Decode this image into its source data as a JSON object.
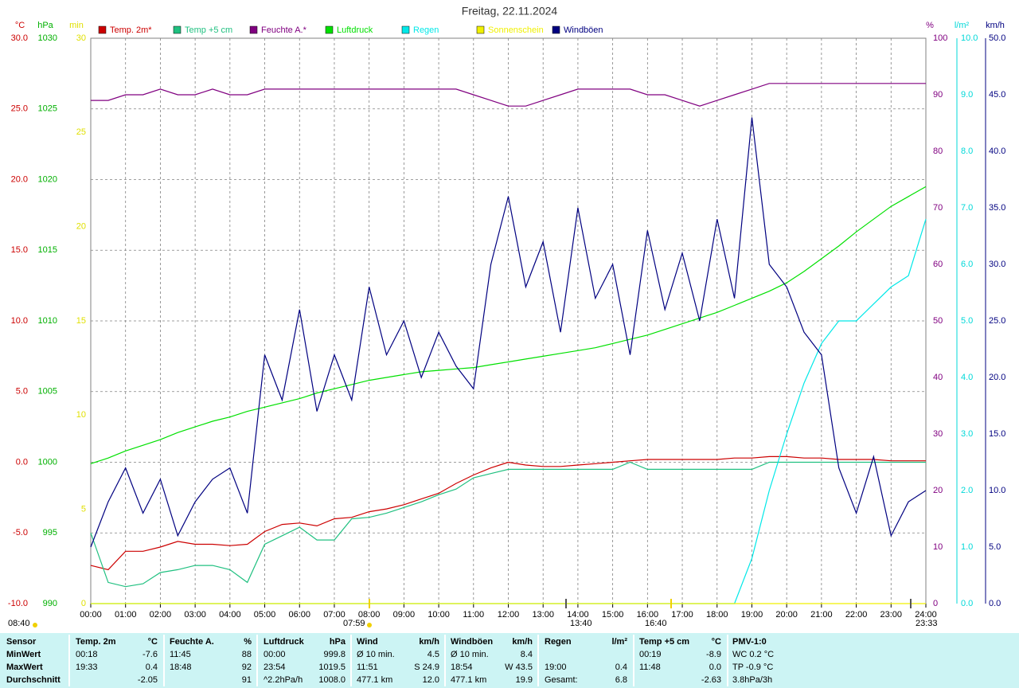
{
  "chart_data": {
    "type": "line",
    "title": "Freitag, 22.11.2024",
    "grid": true,
    "x": [
      0,
      0.5,
      1,
      1.5,
      2,
      2.5,
      3,
      3.5,
      4,
      4.5,
      5,
      5.5,
      6,
      6.5,
      7,
      7.5,
      8,
      8.5,
      9,
      9.5,
      10,
      10.5,
      11,
      11.5,
      12,
      12.5,
      13,
      13.5,
      14,
      14.5,
      15,
      15.5,
      16,
      16.5,
      17,
      17.5,
      18,
      18.5,
      19,
      19.5,
      20,
      20.5,
      21,
      21.5,
      22,
      22.5,
      23,
      23.5,
      24
    ],
    "xlim": [
      0,
      24
    ],
    "xticks": [
      {
        "value": 0,
        "label": "00:00"
      },
      {
        "value": 1,
        "label": "01:00"
      },
      {
        "value": 2,
        "label": "02:00"
      },
      {
        "value": 3,
        "label": "03:00"
      },
      {
        "value": 4,
        "label": "04:00"
      },
      {
        "value": 5,
        "label": "05:00"
      },
      {
        "value": 6,
        "label": "06:00"
      },
      {
        "value": 7,
        "label": "07:00"
      },
      {
        "value": 8,
        "label": "08:00"
      },
      {
        "value": 9,
        "label": "09:00"
      },
      {
        "value": 10,
        "label": "10:00"
      },
      {
        "value": 11,
        "label": "11:00"
      },
      {
        "value": 12,
        "label": "12:00"
      },
      {
        "value": 13,
        "label": "13:00"
      },
      {
        "value": 14,
        "label": "14:00"
      },
      {
        "value": 15,
        "label": "15:00"
      },
      {
        "value": 16,
        "label": "16:00"
      },
      {
        "value": 17,
        "label": "17:00"
      },
      {
        "value": 18,
        "label": "18:00"
      },
      {
        "value": 19,
        "label": "19:00"
      },
      {
        "value": 20,
        "label": "20:00"
      },
      {
        "value": 21,
        "label": "21:00"
      },
      {
        "value": 22,
        "label": "22:00"
      },
      {
        "value": 23,
        "label": "23:00"
      },
      {
        "value": 24,
        "label": "24:00"
      }
    ],
    "axes": {
      "temp": {
        "label": "°C",
        "color": "#cc0000",
        "side": "left",
        "lim": [
          -10,
          30
        ],
        "ticks": [
          {
            "value": -10,
            "label": "-10.0"
          },
          {
            "value": -5,
            "label": "-5.0"
          },
          {
            "value": 0,
            "label": "0.0"
          },
          {
            "value": 5,
            "label": "5.0"
          },
          {
            "value": 10,
            "label": "10.0"
          },
          {
            "value": 15,
            "label": "15.0"
          },
          {
            "value": 20,
            "label": "20.0"
          },
          {
            "value": 25,
            "label": "25.0"
          },
          {
            "value": 30,
            "label": "30.0"
          }
        ]
      },
      "press": {
        "label": "hPa",
        "color": "#00b000",
        "side": "left",
        "lim": [
          990,
          1030
        ],
        "ticks": [
          990,
          995,
          1000,
          1005,
          1010,
          1015,
          1020,
          1025,
          1030
        ]
      },
      "sun": {
        "label": "min",
        "color": "#e0e000",
        "side": "left",
        "lim": [
          0,
          30
        ],
        "ticks": [
          0,
          5,
          10,
          15,
          20,
          25,
          30
        ]
      },
      "hum": {
        "label": "%",
        "color": "#800080",
        "side": "right",
        "lim": [
          0,
          100
        ],
        "ticks": [
          0,
          10,
          20,
          30,
          40,
          50,
          60,
          70,
          80,
          90,
          100
        ]
      },
      "rain": {
        "label": "l/m²",
        "color": "#00d8d8",
        "side": "right",
        "lim": [
          0,
          10
        ],
        "ticks": [
          {
            "value": 0,
            "label": "0.0"
          },
          {
            "value": 1,
            "label": "1.0"
          },
          {
            "value": 2,
            "label": "2.0"
          },
          {
            "value": 3,
            "label": "3.0"
          },
          {
            "value": 4,
            "label": "4.0"
          },
          {
            "value": 5,
            "label": "5.0"
          },
          {
            "value": 6,
            "label": "6.0"
          },
          {
            "value": 7,
            "label": "7.0"
          },
          {
            "value": 8,
            "label": "8.0"
          },
          {
            "value": 9,
            "label": "9.0"
          },
          {
            "value": 10,
            "label": "10.0"
          }
        ]
      },
      "wind": {
        "label": "km/h",
        "color": "#000080",
        "side": "right",
        "lim": [
          0,
          50
        ],
        "ticks": [
          {
            "value": 0,
            "label": "0.0"
          },
          {
            "value": 5,
            "label": "5.0"
          },
          {
            "value": 10,
            "label": "10.0"
          },
          {
            "value": 15,
            "label": "15.0"
          },
          {
            "value": 20,
            "label": "20.0"
          },
          {
            "value": 25,
            "label": "25.0"
          },
          {
            "value": 30,
            "label": "30.0"
          },
          {
            "value": 35,
            "label": "35.0"
          },
          {
            "value": 40,
            "label": "40.0"
          },
          {
            "value": 45,
            "label": "45.0"
          },
          {
            "value": 50,
            "label": "50.0"
          }
        ]
      }
    },
    "series": [
      {
        "name": "Temp. 2m*",
        "color": "#cc0000",
        "axis": "temp",
        "values": [
          -7.3,
          -7.6,
          -6.3,
          -6.3,
          -6.0,
          -5.6,
          -5.8,
          -5.8,
          -5.9,
          -5.8,
          -4.9,
          -4.4,
          -4.3,
          -4.5,
          -4.0,
          -3.9,
          -3.5,
          -3.3,
          -3.0,
          -2.6,
          -2.2,
          -1.5,
          -0.9,
          -0.4,
          0.0,
          -0.2,
          -0.3,
          -0.3,
          -0.2,
          -0.1,
          0.0,
          0.1,
          0.2,
          0.2,
          0.2,
          0.2,
          0.2,
          0.3,
          0.3,
          0.4,
          0.4,
          0.3,
          0.3,
          0.2,
          0.2,
          0.2,
          0.1,
          0.1,
          0.1
        ]
      },
      {
        "name": "Temp +5 cm",
        "color": "#20c080",
        "axis": "temp",
        "values": [
          -5.0,
          -8.5,
          -8.8,
          -8.6,
          -7.8,
          -7.6,
          -7.3,
          -7.3,
          -7.6,
          -8.5,
          -5.8,
          -5.2,
          -4.6,
          -5.5,
          -5.5,
          -4.0,
          -3.9,
          -3.6,
          -3.2,
          -2.8,
          -2.3,
          -1.9,
          -1.1,
          -0.8,
          -0.5,
          -0.5,
          -0.5,
          -0.5,
          -0.5,
          -0.5,
          -0.5,
          0.0,
          -0.5,
          -0.5,
          -0.5,
          -0.5,
          -0.5,
          -0.5,
          -0.5,
          0.0,
          0.0,
          0.0,
          0.0,
          0.0,
          0.0,
          0.0,
          0.0,
          0.0,
          0.0
        ]
      },
      {
        "name": "Feuchte A.*",
        "color": "#800080",
        "axis": "hum",
        "values": [
          89,
          89,
          90,
          90,
          91,
          90,
          90,
          91,
          90,
          90,
          91,
          91,
          91,
          91,
          91,
          91,
          91,
          91,
          91,
          91,
          91,
          91,
          90,
          89,
          88,
          88,
          89,
          90,
          91,
          91,
          91,
          91,
          90,
          90,
          89,
          88,
          89,
          90,
          91,
          92,
          92,
          92,
          92,
          92,
          92,
          92,
          92,
          92,
          92
        ]
      },
      {
        "name": "Luftdruck",
        "color": "#00e000",
        "axis": "press",
        "values": [
          999.9,
          1000.3,
          1000.8,
          1001.2,
          1001.6,
          1002.1,
          1002.5,
          1002.9,
          1003.2,
          1003.6,
          1003.9,
          1004.2,
          1004.5,
          1004.9,
          1005.2,
          1005.5,
          1005.8,
          1006.0,
          1006.2,
          1006.4,
          1006.5,
          1006.6,
          1006.7,
          1006.9,
          1007.1,
          1007.3,
          1007.5,
          1007.7,
          1007.9,
          1008.1,
          1008.4,
          1008.7,
          1009.0,
          1009.4,
          1009.8,
          1010.2,
          1010.6,
          1011.1,
          1011.6,
          1012.1,
          1012.7,
          1013.5,
          1014.4,
          1015.3,
          1016.3,
          1017.2,
          1018.1,
          1018.8,
          1019.5
        ]
      },
      {
        "name": "Regen",
        "color": "#00e8e8",
        "axis": "rain",
        "values": [
          0,
          0,
          0,
          0,
          0,
          0,
          0,
          0,
          0,
          0,
          0,
          0,
          0,
          0,
          0,
          0,
          0,
          0,
          0,
          0,
          0,
          0,
          0,
          0,
          0,
          0,
          0,
          0,
          0,
          0,
          0,
          0,
          0,
          0,
          0,
          0,
          0,
          0,
          0.8,
          2.0,
          3.0,
          3.9,
          4.6,
          5.0,
          5.0,
          5.3,
          5.6,
          5.8,
          6.8
        ]
      },
      {
        "name": "Sonnenschein",
        "color": "#f0f000",
        "axis": "sun",
        "values": [
          0,
          0,
          0,
          0,
          0,
          0,
          0,
          0,
          0,
          0,
          0,
          0,
          0,
          0,
          0,
          0,
          0,
          0,
          0,
          0,
          0,
          0,
          0,
          0,
          0,
          0,
          0,
          0,
          0,
          0,
          0,
          0,
          0,
          0,
          0,
          0,
          0,
          0,
          0,
          0,
          0,
          0,
          0,
          0,
          0,
          0,
          0,
          0,
          0
        ]
      },
      {
        "name": "Windböen",
        "color": "#000080",
        "axis": "wind",
        "values": [
          5,
          9,
          12,
          8,
          11,
          6,
          9,
          11,
          12,
          8,
          22,
          18,
          26,
          17,
          22,
          18,
          28,
          22,
          25,
          20,
          24,
          21,
          19,
          30,
          36,
          28,
          32,
          24,
          35,
          27,
          30,
          22,
          33,
          26,
          31,
          25,
          34,
          27,
          43,
          30,
          28,
          24,
          22,
          12,
          8,
          13,
          6,
          9,
          10
        ]
      }
    ],
    "annotations": [
      "08:40",
      "07:59",
      "13:40",
      "16:40",
      "23:33"
    ]
  },
  "stats": {
    "header": [
      "Sensor",
      [
        "Temp. 2m",
        "°C"
      ],
      [
        "Feuchte A.",
        "%"
      ],
      [
        "Luftdruck",
        "hPa"
      ],
      [
        "Wind",
        "km/h"
      ],
      [
        "Windböen",
        "km/h"
      ],
      [
        "Regen",
        "l/m²"
      ],
      [
        "Temp +5 cm",
        "°C"
      ],
      "PMV-1:0"
    ],
    "rows": [
      [
        "MinWert",
        [
          "00:18",
          "-7.6"
        ],
        [
          "11:45",
          "88"
        ],
        [
          "00:00",
          "999.8"
        ],
        [
          "Ø 10 min.",
          "4.5"
        ],
        [
          "Ø 10 min.",
          "8.4"
        ],
        [
          null,
          null
        ],
        [
          "00:19",
          "-8.9"
        ],
        "WC 0.2 °C"
      ],
      [
        "MaxWert",
        [
          "19:33",
          "0.4"
        ],
        [
          "18:48",
          "92"
        ],
        [
          "23:54",
          "1019.5"
        ],
        [
          "11:51",
          "S 24.9"
        ],
        [
          "18:54",
          "W 43.5"
        ],
        [
          "19:00",
          "0.4"
        ],
        [
          "11:48",
          "0.0"
        ],
        "TP -0.9 °C"
      ],
      [
        "Durchschnitt",
        [
          null,
          "-2.05"
        ],
        [
          null,
          "91"
        ],
        [
          "^2.2hPa/h",
          "1008.0"
        ],
        [
          "477.1 km",
          "12.0"
        ],
        [
          "477.1 km",
          "19.9"
        ],
        [
          "Gesamt:",
          "6.8"
        ],
        [
          null,
          "-2.63"
        ],
        "3.8hPa/3h"
      ]
    ]
  }
}
